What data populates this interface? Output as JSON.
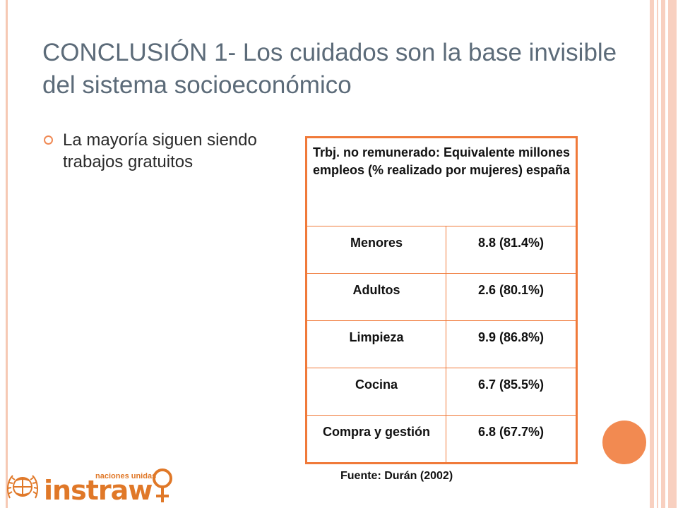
{
  "slide": {
    "title": "CONCLUSIÓN 1- Los cuidados son la base invisible del sistema socioeconómico",
    "bullet": "La mayoría siguen siendo trabajos gratuitos"
  },
  "table": {
    "header": "Trbj. no remunerado: Equivalente millones empleos (% realizado por mujeres) españa",
    "rows": [
      {
        "label": "Menores",
        "value": "8.8 (81.4%)"
      },
      {
        "label": "Adultos",
        "value": "2.6 (80.1%)"
      },
      {
        "label": "Limpieza",
        "value": "9.9 (86.8%)"
      },
      {
        "label": "Cocina",
        "value": "6.7 (85.5%)"
      },
      {
        "label": "Compra y gestión",
        "value": "6.8 (67.7%)"
      }
    ]
  },
  "source": "Fuente: Durán (2002)",
  "logo": {
    "word": "instraw",
    "subtitle": "naciones unidas"
  },
  "colors": {
    "accent": "#f07a3a",
    "title": "#5c6b79",
    "stripe": "#f8d0c0",
    "logo": "#e07828"
  }
}
